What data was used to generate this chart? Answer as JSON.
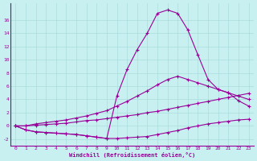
{
  "xlabel": "Windchill (Refroidissement éolien,°C)",
  "background_color": "#c8f0f0",
  "line_color": "#990099",
  "grid_color": "#aadddd",
  "x_values": [
    0,
    1,
    2,
    3,
    4,
    5,
    6,
    7,
    8,
    9,
    10,
    11,
    12,
    13,
    14,
    15,
    16,
    17,
    18,
    19,
    20,
    21,
    22,
    23
  ],
  "curve1": [
    0,
    -0.6,
    -0.9,
    -1.0,
    -1.1,
    -1.2,
    -1.3,
    -1.5,
    -1.7,
    -1.9,
    -1.9,
    -1.8,
    -1.7,
    -1.6,
    -1.3,
    -1.0,
    -0.7,
    -0.3,
    0.0,
    0.3,
    0.5,
    0.7,
    0.9,
    1.0
  ],
  "curve2": [
    0,
    0.0,
    0.1,
    0.2,
    0.3,
    0.4,
    0.6,
    0.8,
    0.9,
    1.1,
    1.3,
    1.5,
    1.7,
    2.0,
    2.2,
    2.5,
    2.8,
    3.1,
    3.4,
    3.7,
    4.0,
    4.3,
    4.6,
    4.9
  ],
  "curve3": [
    0,
    0.0,
    0.3,
    0.5,
    0.7,
    0.9,
    1.2,
    1.5,
    1.9,
    2.3,
    3.0,
    3.7,
    4.5,
    5.3,
    6.2,
    7.0,
    7.5,
    7.0,
    6.5,
    6.0,
    5.5,
    5.0,
    4.5,
    4.0
  ],
  "curve4": [
    0,
    -0.6,
    -0.9,
    -1.0,
    -1.1,
    -1.2,
    -1.3,
    -1.5,
    -1.7,
    -1.9,
    4.5,
    8.5,
    11.5,
    14.0,
    17.0,
    17.5,
    17.0,
    14.5,
    10.7,
    7.0,
    5.5,
    5.0,
    3.8,
    3.0
  ],
  "xlim": [
    -0.5,
    23.5
  ],
  "ylim": [
    -3.0,
    18.5
  ],
  "yticks": [
    -2,
    0,
    2,
    4,
    6,
    8,
    10,
    12,
    14,
    16
  ],
  "xticks": [
    0,
    1,
    2,
    3,
    4,
    5,
    6,
    7,
    8,
    9,
    10,
    11,
    12,
    13,
    14,
    15,
    16,
    17,
    18,
    19,
    20,
    21,
    22,
    23
  ]
}
